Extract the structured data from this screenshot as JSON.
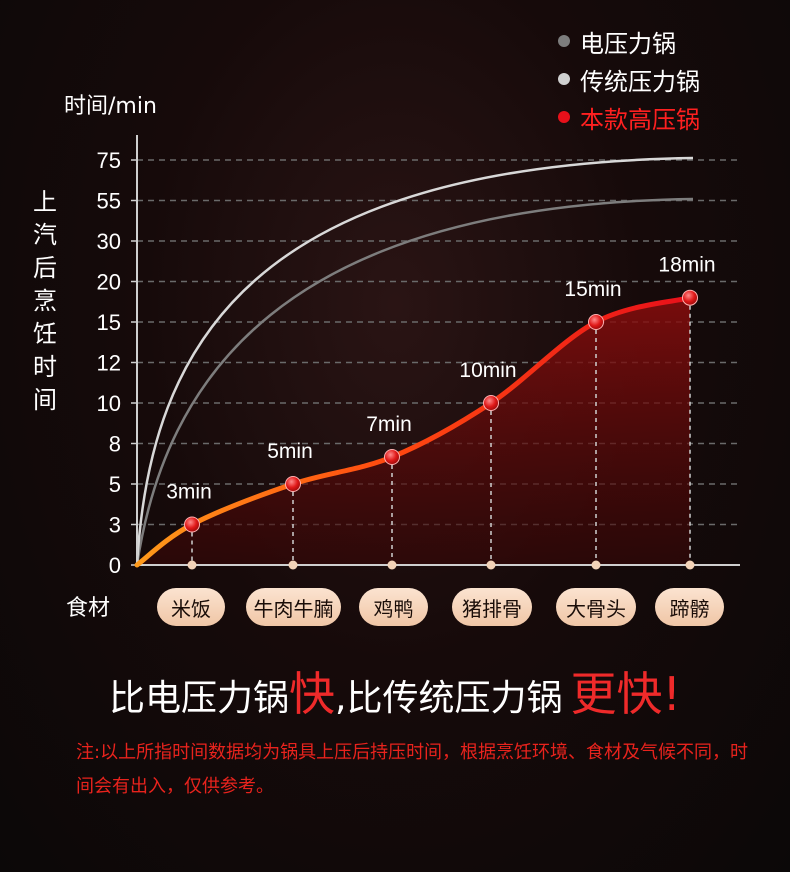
{
  "chart_data": {
    "type": "line",
    "ylabel": "时间/min",
    "ylabel_vertical": "上汽后烹饪时间",
    "xlabel": "食材",
    "y_ticks": [
      "75",
      "55",
      "30",
      "20",
      "15",
      "12",
      "10",
      "8",
      "5",
      "3",
      "0"
    ],
    "categories": [
      "米饭",
      "牛肉牛腩",
      "鸡鸭",
      "猪排骨",
      "大骨头",
      "蹄髈"
    ],
    "series": [
      {
        "name": "电压力锅",
        "color": "#7d7d7d"
      },
      {
        "name": "传统压力锅",
        "color": "#d0d0d0"
      },
      {
        "name": "本款高压锅",
        "color": "#e8101a",
        "values": [
          3,
          5,
          7,
          10,
          15,
          18
        ],
        "labels": [
          "3min",
          "5min",
          "7min",
          "10min",
          "15min",
          "18min"
        ]
      }
    ],
    "grid": true,
    "legend_position": "top-right"
  },
  "headline": {
    "part1": "比电压力锅",
    "highlight1": "快",
    "part2": ",比传统压力锅",
    "highlight2": "更快!"
  },
  "note": "注:以上所指时间数据均为锅具上压后持压时间，根据烹饪环境、食材及气候不同，时间会有出入，仅供参考。"
}
